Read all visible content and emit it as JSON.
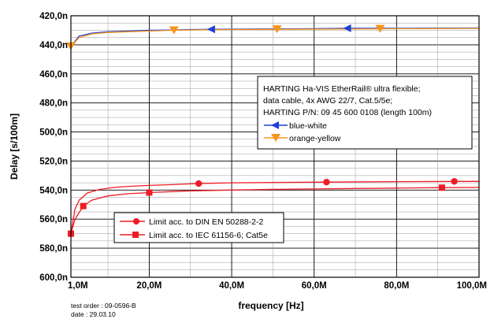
{
  "chart_data": {
    "type": "line",
    "xlabel": "frequency [Hz]",
    "ylabel": "Delay [s/100m]",
    "xlim": [
      1,
      100
    ],
    "ylim": [
      420,
      600
    ],
    "y_inverted": true,
    "grid": true,
    "x_ticks": [
      1,
      20,
      40,
      60,
      80,
      100
    ],
    "x_tick_labels": [
      "1,0M",
      "20,0M",
      "40,0M",
      "60,0M",
      "80,0M",
      "100,0M"
    ],
    "y_ticks": [
      420,
      440,
      460,
      480,
      500,
      520,
      540,
      560,
      580,
      600
    ],
    "y_tick_labels": [
      "420,0n",
      "440,0n",
      "460,0n",
      "480,0n",
      "500,0n",
      "520,0n",
      "540,0n",
      "560,0n",
      "580,0n",
      "600,0n"
    ],
    "info_box": {
      "lines": [
        "HARTING Ha-VIS EtherRail® ultra flexible;",
        "data cable, 4x AWG 22/7, Cat.5/5e;",
        "HARTING P/N: 09 45 600 0108 (length 100m)"
      ],
      "placement": "top-right"
    },
    "series": [
      {
        "name": "blue-white",
        "color": "#1f3fd6",
        "marker": "triangle-left",
        "x": [
          1,
          3,
          6,
          10,
          15,
          20,
          25,
          30,
          35,
          40,
          50,
          60,
          68,
          80,
          90,
          100
        ],
        "y": [
          441,
          434,
          432,
          431,
          430.5,
          430,
          429.8,
          429.5,
          429.3,
          429.2,
          429,
          428.9,
          428.6,
          428.6,
          428.5,
          428.4
        ],
        "marker_x": [
          35,
          68
        ]
      },
      {
        "name": "orange-yellow",
        "color": "#f7941d",
        "marker": "triangle-down",
        "x": [
          1,
          3,
          6,
          10,
          15,
          20,
          26,
          30,
          35,
          40,
          51,
          60,
          76,
          80,
          90,
          100
        ],
        "y": [
          441,
          435,
          432.5,
          431.5,
          431,
          430.5,
          430,
          429.8,
          429.6,
          429.5,
          429.3,
          429.2,
          429,
          428.9,
          428.8,
          428.7
        ],
        "marker_x": [
          1,
          26,
          51,
          76
        ]
      }
    ],
    "limits": [
      {
        "name": "Limit acc. to DIN EN 50288-2-2",
        "color": "#ee1c25",
        "marker": "circle",
        "x": [
          1,
          2,
          3,
          5,
          8,
          12,
          16,
          20,
          25,
          32,
          40,
          50,
          63,
          75,
          94,
          100
        ],
        "y": [
          570,
          553,
          547,
          542,
          539.5,
          538,
          537.3,
          536.8,
          536.3,
          535.5,
          535,
          534.8,
          534.5,
          534.3,
          534,
          534
        ],
        "marker_x": [
          1,
          32,
          63,
          94
        ]
      },
      {
        "name": "Limit acc. to IEC 61156-6; Cat5e",
        "color": "#ee1c25",
        "marker": "square",
        "x": [
          1,
          2,
          4,
          6,
          10,
          15,
          20,
          30,
          40,
          50,
          60,
          70,
          80,
          91,
          100
        ],
        "y": [
          570,
          560,
          551,
          547,
          544,
          542.5,
          541.7,
          540.5,
          540,
          539.5,
          539.2,
          538.9,
          538.6,
          538.3,
          538.2
        ],
        "marker_x": [
          1,
          4,
          20,
          91
        ]
      }
    ],
    "footnote": [
      "test order : 09-0596-B",
      "date : 29.03.10"
    ]
  }
}
